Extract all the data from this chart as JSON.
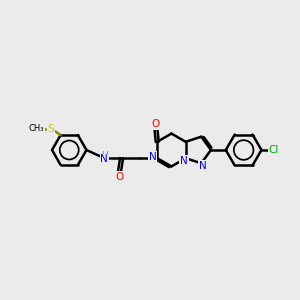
{
  "background_color": "#ebebeb",
  "bond_color": "#000000",
  "bond_width": 1.8,
  "atom_colors": {
    "N": "#0000ee",
    "O": "#ff0000",
    "S": "#cccc00",
    "Cl": "#00aa00",
    "H": "#5599aa"
  },
  "figsize": [
    3.0,
    3.0
  ],
  "dpi": 100
}
